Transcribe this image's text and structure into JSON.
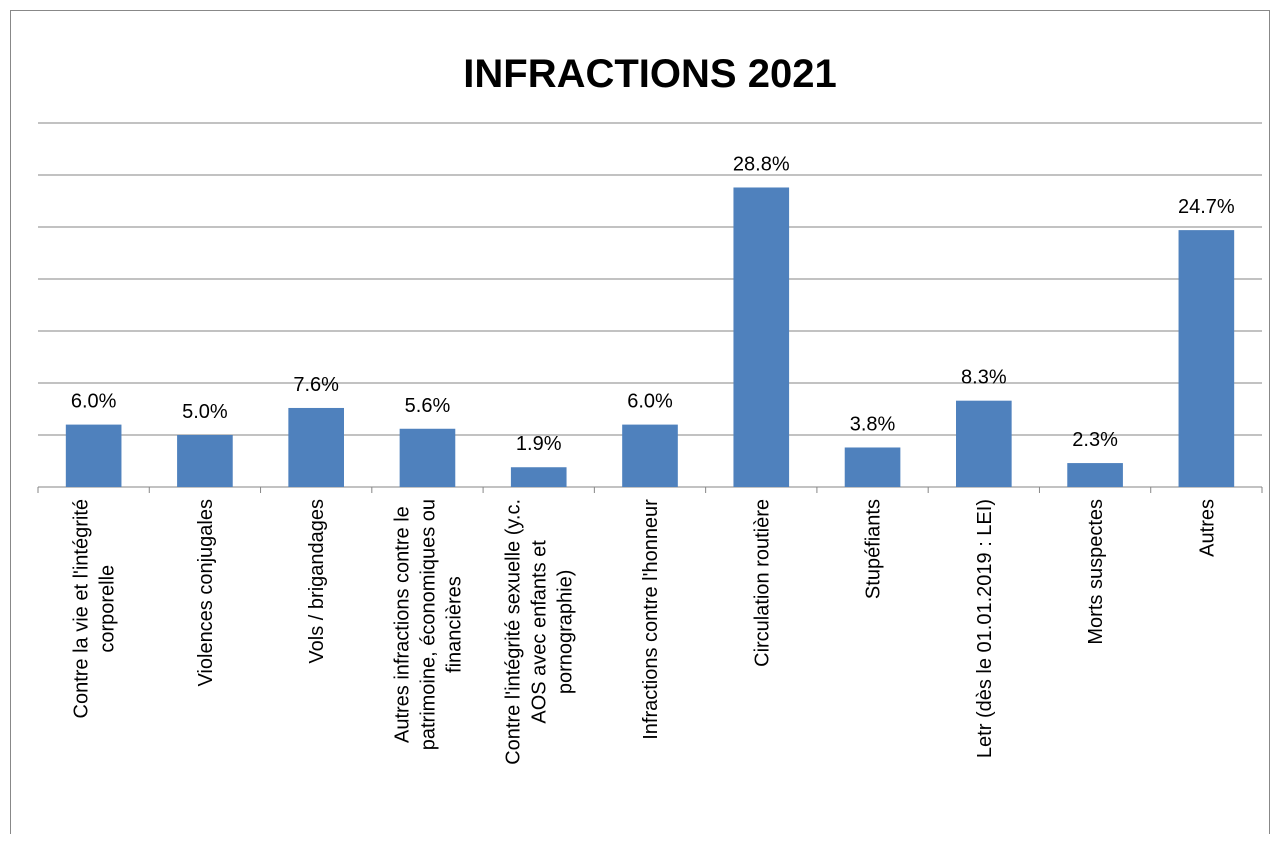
{
  "chart_data": {
    "type": "bar",
    "title": "INFRACTIONS 2021",
    "xlabel": "",
    "ylabel": "",
    "ylim": [
      0,
      35
    ],
    "grid": true,
    "legend": "none",
    "bar_color": "#4F81BD",
    "gridline_color": "#868686",
    "categories": [
      [
        "Contre la vie et l'intégrité",
        "corporelle"
      ],
      [
        "Violences conjugales"
      ],
      [
        "Vols / brigandages"
      ],
      [
        "Autres infractions contre le",
        "patrimoine, économiques ou",
        "financières"
      ],
      [
        "Contre l'intégrité sexuelle (y.c.",
        "AOS avec enfants et",
        "pornographie)"
      ],
      [
        "Infractions contre l'honneur"
      ],
      [
        "Circulation routière"
      ],
      [
        "Stupéfiants"
      ],
      [
        "Letr (dès le 01.01.2019 : LEI)"
      ],
      [
        "Morts suspectes"
      ],
      [
        "Autres"
      ]
    ],
    "values": [
      6.0,
      5.0,
      7.6,
      5.6,
      1.9,
      6.0,
      28.8,
      3.8,
      8.3,
      2.3,
      24.7
    ],
    "data_labels": [
      "6.0%",
      "5.0%",
      "7.6%",
      "5.6%",
      "1.9%",
      "6.0%",
      "28.8%",
      "3.8%",
      "8.3%",
      "2.3%",
      "24.7%"
    ]
  }
}
